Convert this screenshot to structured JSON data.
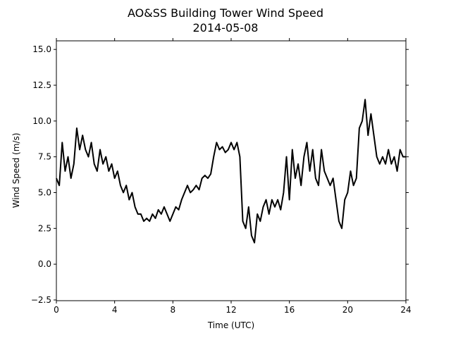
{
  "chart_data": {
    "type": "line",
    "title": "AO&SS Building Tower Wind Speed",
    "subtitle": "2014-05-08",
    "x_label": "Time (UTC)",
    "y_label": "Wind Speed (m/s)",
    "xlim": [
      0,
      24
    ],
    "xticks": [
      0,
      4,
      8,
      12,
      16,
      20,
      24
    ],
    "ylim": [
      -2.55,
      15.6
    ],
    "yticks": [
      {
        "value": -2.5,
        "label": "−2.5"
      },
      {
        "value": 0,
        "label": "0.0"
      },
      2.5,
      {
        "value": 5,
        "label": "5.0"
      },
      7.5,
      {
        "value": 10,
        "label": "10.0"
      },
      12.5,
      {
        "value": 15,
        "label": "15.0"
      }
    ],
    "x": [
      0.0,
      0.2,
      0.4,
      0.6,
      0.8,
      1.0,
      1.2,
      1.4,
      1.6,
      1.8,
      2.0,
      2.2,
      2.4,
      2.6,
      2.8,
      3.0,
      3.2,
      3.4,
      3.6,
      3.8,
      4.0,
      4.2,
      4.4,
      4.6,
      4.8,
      5.0,
      5.2,
      5.4,
      5.6,
      5.8,
      6.0,
      6.2,
      6.4,
      6.6,
      6.8,
      7.0,
      7.2,
      7.4,
      7.6,
      7.8,
      8.0,
      8.2,
      8.4,
      8.6,
      8.8,
      9.0,
      9.2,
      9.4,
      9.6,
      9.8,
      10.0,
      10.2,
      10.4,
      10.6,
      10.8,
      11.0,
      11.2,
      11.4,
      11.6,
      11.8,
      12.0,
      12.2,
      12.4,
      12.6,
      12.8,
      13.0,
      13.2,
      13.4,
      13.6,
      13.8,
      14.0,
      14.2,
      14.4,
      14.6,
      14.8,
      15.0,
      15.2,
      15.4,
      15.6,
      15.8,
      16.0,
      16.2,
      16.4,
      16.6,
      16.8,
      17.0,
      17.2,
      17.4,
      17.6,
      17.8,
      18.0,
      18.2,
      18.4,
      18.6,
      18.8,
      19.0,
      19.2,
      19.4,
      19.6,
      19.8,
      20.0,
      20.2,
      20.4,
      20.6,
      20.8,
      21.0,
      21.2,
      21.4,
      21.6,
      21.8,
      22.0,
      22.2,
      22.4,
      22.6,
      22.8,
      23.0,
      23.2,
      23.4,
      23.6,
      23.8,
      24.0
    ],
    "series": [
      {
        "color": "#000000",
        "values": [
          6.0,
          5.5,
          8.5,
          6.5,
          7.5,
          6.0,
          7.0,
          9.5,
          8.0,
          9.0,
          8.0,
          7.5,
          8.5,
          7.0,
          6.5,
          8.0,
          7.0,
          7.5,
          6.5,
          7.0,
          6.0,
          6.5,
          5.5,
          5.0,
          5.5,
          4.5,
          5.0,
          4.0,
          3.5,
          3.5,
          3.0,
          3.2,
          3.0,
          3.5,
          3.2,
          3.8,
          3.5,
          4.0,
          3.5,
          3.0,
          3.5,
          4.0,
          3.8,
          4.5,
          5.0,
          5.5,
          5.0,
          5.2,
          5.5,
          5.2,
          6.0,
          6.2,
          6.0,
          6.3,
          7.5,
          8.5,
          8.0,
          8.2,
          7.8,
          8.0,
          8.5,
          8.0,
          8.5,
          7.5,
          3.0,
          2.5,
          4.0,
          2.0,
          1.5,
          3.5,
          3.0,
          4.0,
          4.5,
          3.5,
          4.5,
          4.0,
          4.5,
          3.8,
          5.0,
          7.5,
          4.5,
          8.0,
          6.0,
          7.0,
          5.5,
          7.5,
          8.5,
          6.5,
          8.0,
          6.0,
          5.5,
          8.0,
          6.5,
          6.0,
          5.5,
          6.0,
          4.5,
          3.0,
          2.5,
          4.5,
          5.0,
          6.5,
          5.5,
          6.0,
          9.5,
          10.0,
          11.5,
          9.0,
          10.5,
          9.0,
          7.5,
          7.0,
          7.5,
          7.0,
          8.0,
          7.0,
          7.5,
          6.5,
          8.0,
          7.5,
          7.5
        ]
      }
    ]
  }
}
